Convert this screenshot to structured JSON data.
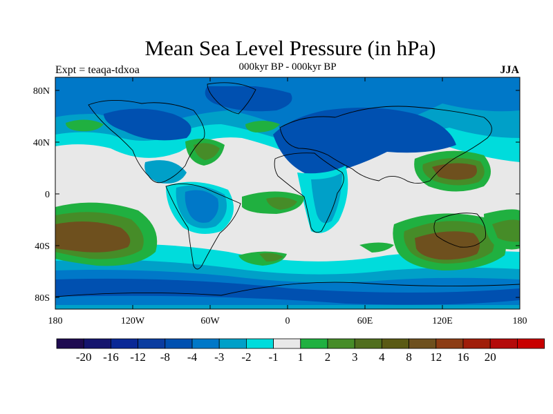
{
  "header": {
    "title": "Mean Sea Level Pressure (in hPa)",
    "subtitle": "000kyr BP - 000kyr BP",
    "experiment": "Expt = teaqa-tdxoa",
    "season": "JJA"
  },
  "map": {
    "lat_labels": [
      "80N",
      "40N",
      "0",
      "40S",
      "80S"
    ],
    "lon_labels": [
      "180",
      "120W",
      "60W",
      "0",
      "60E",
      "120E",
      "180"
    ],
    "colors": {
      "neutral": "#e8e8e8",
      "neg1": "#00dcdc",
      "neg2": "#00a0c8",
      "neg3": "#0078c8",
      "neg4": "#0050b0",
      "neg5": "#0a3296",
      "pos1": "#20b040",
      "pos2": "#468c28",
      "pos3": "#5a6e1e",
      "pos4": "#6e501e",
      "coast": "#000000"
    }
  },
  "colorbar": {
    "colors": [
      "#1e0a50",
      "#14146e",
      "#0a2896",
      "#0a3ca0",
      "#0050b0",
      "#0078c8",
      "#00a0c8",
      "#00dcdc",
      "#e8e8e8",
      "#20b040",
      "#468c28",
      "#506e1e",
      "#5a5a14",
      "#6e501e",
      "#8c3c14",
      "#a01e0a",
      "#b40a0a",
      "#c80000"
    ],
    "labels": [
      "-20",
      "-16",
      "-12",
      "-8",
      "-4",
      "-3",
      "-2",
      "-1",
      "1",
      "2",
      "3",
      "4",
      "8",
      "12",
      "16",
      "20"
    ]
  }
}
